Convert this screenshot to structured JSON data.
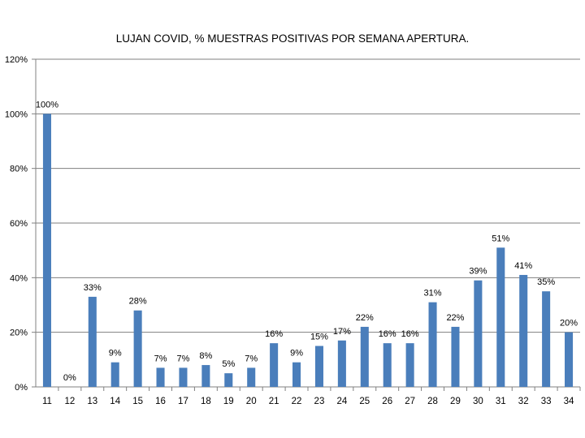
{
  "chart_data": {
    "type": "bar",
    "title": "LUJAN COVID, % MUESTRAS POSITIVAS POR SEMANA APERTURA.",
    "xlabel": "",
    "ylabel": "",
    "ylim": [
      0,
      120
    ],
    "yticks": [
      "0%",
      "20%",
      "40%",
      "60%",
      "80%",
      "100%",
      "120%"
    ],
    "grid": true,
    "legend": "none",
    "bar_color": "#4a7ebb",
    "grid_color": "#7f7f7f",
    "categories": [
      "11",
      "12",
      "13",
      "14",
      "15",
      "16",
      "17",
      "18",
      "19",
      "20",
      "21",
      "22",
      "23",
      "24",
      "25",
      "26",
      "27",
      "28",
      "29",
      "30",
      "31",
      "32",
      "33",
      "34"
    ],
    "values": [
      100,
      0,
      33,
      9,
      28,
      7,
      7,
      8,
      5,
      7,
      16,
      9,
      15,
      17,
      22,
      16,
      16,
      31,
      22,
      39,
      51,
      41,
      35,
      20
    ],
    "data_labels": [
      "100%",
      "0%",
      "33%",
      "9%",
      "28%",
      "7%",
      "7%",
      "8%",
      "5%",
      "7%",
      "16%",
      "9%",
      "15%",
      "17%",
      "22%",
      "16%",
      "16%",
      "31%",
      "22%",
      "39%",
      "51%",
      "41%",
      "35%",
      "20%"
    ]
  }
}
